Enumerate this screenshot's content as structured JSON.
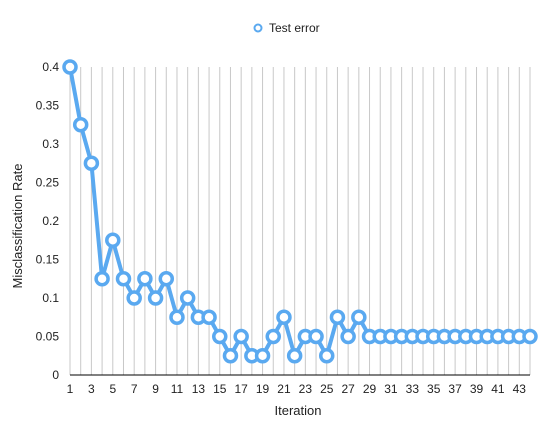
{
  "chart_data": {
    "type": "line",
    "title": "",
    "xlabel": "Iteration",
    "ylabel": "Misclassification Rate",
    "legend": {
      "position": "top-center",
      "entries": [
        "Test error"
      ]
    },
    "grid": {
      "vertical": true,
      "horizontal": false
    },
    "ylim": [
      0,
      0.4
    ],
    "yticks": [
      "0",
      "0.05",
      "0.1",
      "0.15",
      "0.2",
      "0.25",
      "0.3",
      "0.35",
      "0.4"
    ],
    "xticks": [
      "1",
      "3",
      "5",
      "7",
      "9",
      "11",
      "13",
      "15",
      "17",
      "19",
      "21",
      "23",
      "25",
      "27",
      "29",
      "31",
      "33",
      "35",
      "37",
      "39",
      "41",
      "43"
    ],
    "x": [
      1,
      2,
      3,
      4,
      5,
      6,
      7,
      8,
      9,
      10,
      11,
      12,
      13,
      14,
      15,
      16,
      17,
      18,
      19,
      20,
      21,
      22,
      23,
      24,
      25,
      26,
      27,
      28,
      29,
      30,
      31,
      32,
      33,
      34,
      35,
      36,
      37,
      38,
      39,
      40,
      41,
      42,
      43,
      44
    ],
    "series": [
      {
        "name": "Test error",
        "color": "#5aa9f0",
        "values": [
          0.4,
          0.325,
          0.275,
          0.125,
          0.175,
          0.125,
          0.1,
          0.125,
          0.1,
          0.125,
          0.075,
          0.1,
          0.075,
          0.075,
          0.05,
          0.025,
          0.05,
          0.025,
          0.025,
          0.05,
          0.075,
          0.025,
          0.05,
          0.05,
          0.025,
          0.075,
          0.05,
          0.075,
          0.05,
          0.05,
          0.05,
          0.05,
          0.05,
          0.05,
          0.05,
          0.05,
          0.05,
          0.05,
          0.05,
          0.05,
          0.05,
          0.05,
          0.05,
          0.05
        ]
      }
    ]
  }
}
